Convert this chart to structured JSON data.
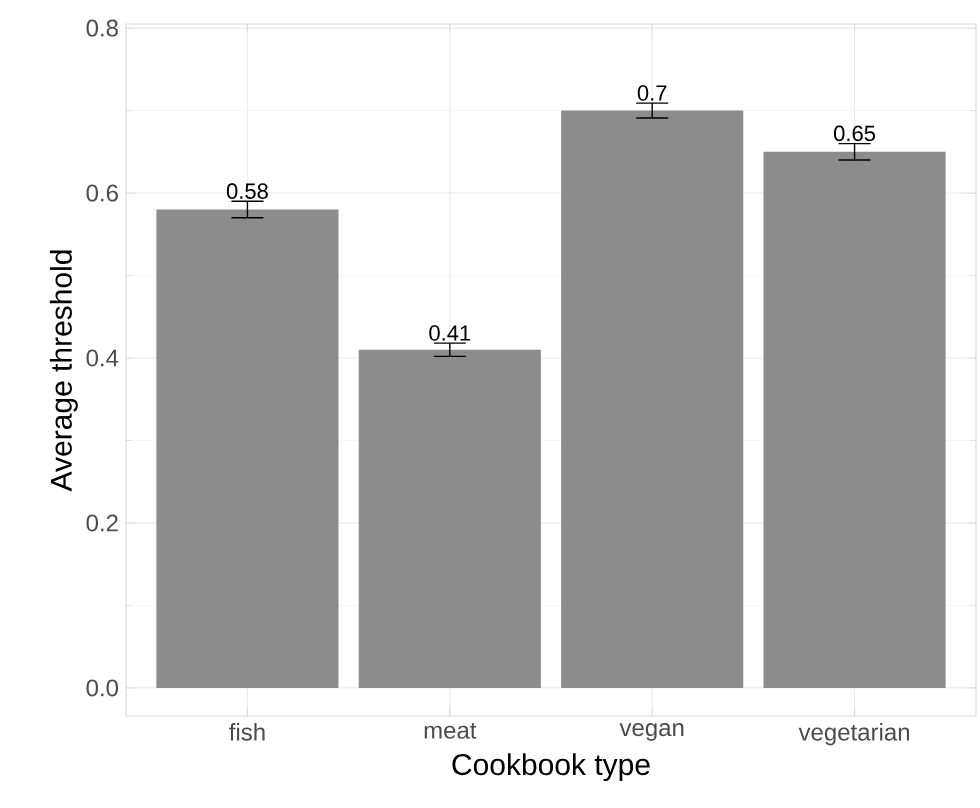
{
  "chart_data": {
    "type": "bar",
    "xlabel": "Cookbook type",
    "ylabel": "Average threshold",
    "categories": [
      "fish",
      "meat",
      "vegan",
      "vegetarian"
    ],
    "values": [
      0.58,
      0.41,
      0.7,
      0.65
    ],
    "errors": [
      0.01,
      0.008,
      0.009,
      0.01
    ],
    "color": "#8c8c8c",
    "data_labels": true,
    "grid": true,
    "ylim": [
      -0.034,
      0.805
    ],
    "yticks": [
      {
        "value": 0,
        "label": "0.0"
      },
      {
        "value": 0.2,
        "label": "0.2"
      },
      {
        "value": 0.4,
        "label": "0.4"
      },
      {
        "value": 0.6,
        "label": "0.6"
      },
      {
        "value": 0.8,
        "label": "0.8"
      }
    ]
  }
}
